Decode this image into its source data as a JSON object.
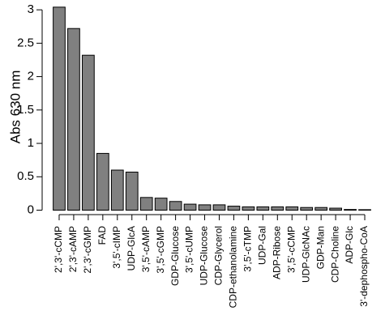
{
  "chart_data": {
    "type": "bar",
    "title": "",
    "xlabel": "",
    "ylabel": "Abs 630 nm",
    "ylim": [
      0,
      3.05
    ],
    "yticks": [
      "0",
      "0.5",
      "1",
      "1.5",
      "2",
      "2.5",
      "3"
    ],
    "bar_color": "#808080",
    "grid": false,
    "legend": "none",
    "categories": [
      "2',3'-cCMP",
      "2',3'-cAMP",
      "2',3'-cGMP",
      "FAD",
      "3',5'-cIMP",
      "UDP-GlcA",
      "3',5'-cAMP",
      "3',5'-cGMP",
      "GDP-Glucose",
      "3',5'-cUMP",
      "UDP-Glucose",
      "CDP-Glycerol",
      "CDP-ethanolamine",
      "3',5'-cTMP",
      "UDP-Gal",
      "ADP-Ribose",
      "3',5'-cCMP",
      "UDP-GlcNAc",
      "GDP-Man",
      "CDP-Choline",
      "ADP-Glc",
      "3'-dephospho-CoA"
    ],
    "values": [
      3.04,
      2.72,
      2.32,
      0.85,
      0.6,
      0.57,
      0.19,
      0.18,
      0.13,
      0.09,
      0.08,
      0.08,
      0.06,
      0.05,
      0.05,
      0.05,
      0.05,
      0.04,
      0.04,
      0.03,
      0.01,
      0.0
    ]
  }
}
